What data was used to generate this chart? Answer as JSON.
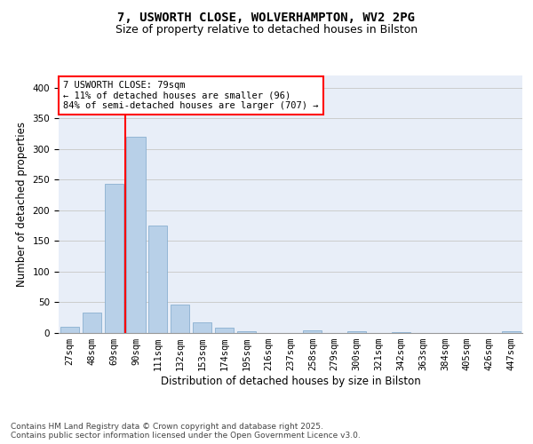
{
  "title1": "7, USWORTH CLOSE, WOLVERHAMPTON, WV2 2PG",
  "title2": "Size of property relative to detached houses in Bilston",
  "xlabel": "Distribution of detached houses by size in Bilston",
  "ylabel": "Number of detached properties",
  "categories": [
    "27sqm",
    "48sqm",
    "69sqm",
    "90sqm",
    "111sqm",
    "132sqm",
    "153sqm",
    "174sqm",
    "195sqm",
    "216sqm",
    "237sqm",
    "258sqm",
    "279sqm",
    "300sqm",
    "321sqm",
    "342sqm",
    "363sqm",
    "384sqm",
    "405sqm",
    "426sqm",
    "447sqm"
  ],
  "values": [
    10,
    33,
    243,
    320,
    175,
    46,
    17,
    8,
    3,
    0,
    0,
    4,
    0,
    3,
    0,
    2,
    0,
    0,
    0,
    0,
    3
  ],
  "bar_color": "#b8d0e8",
  "bar_edgecolor": "#8ab0d0",
  "vline_x": 2.5,
  "vline_color": "red",
  "annotation_text": "7 USWORTH CLOSE: 79sqm\n← 11% of detached houses are smaller (96)\n84% of semi-detached houses are larger (707) →",
  "annotation_box_color": "white",
  "annotation_box_edgecolor": "red",
  "ylim": [
    0,
    420
  ],
  "yticks": [
    0,
    50,
    100,
    150,
    200,
    250,
    300,
    350,
    400
  ],
  "grid_color": "#cccccc",
  "bg_color": "#e8eef8",
  "footer_text": "Contains HM Land Registry data © Crown copyright and database right 2025.\nContains public sector information licensed under the Open Government Licence v3.0.",
  "title_fontsize": 10,
  "subtitle_fontsize": 9,
  "axis_label_fontsize": 8.5,
  "tick_fontsize": 7.5,
  "annotation_fontsize": 7.5,
  "footer_fontsize": 6.5
}
